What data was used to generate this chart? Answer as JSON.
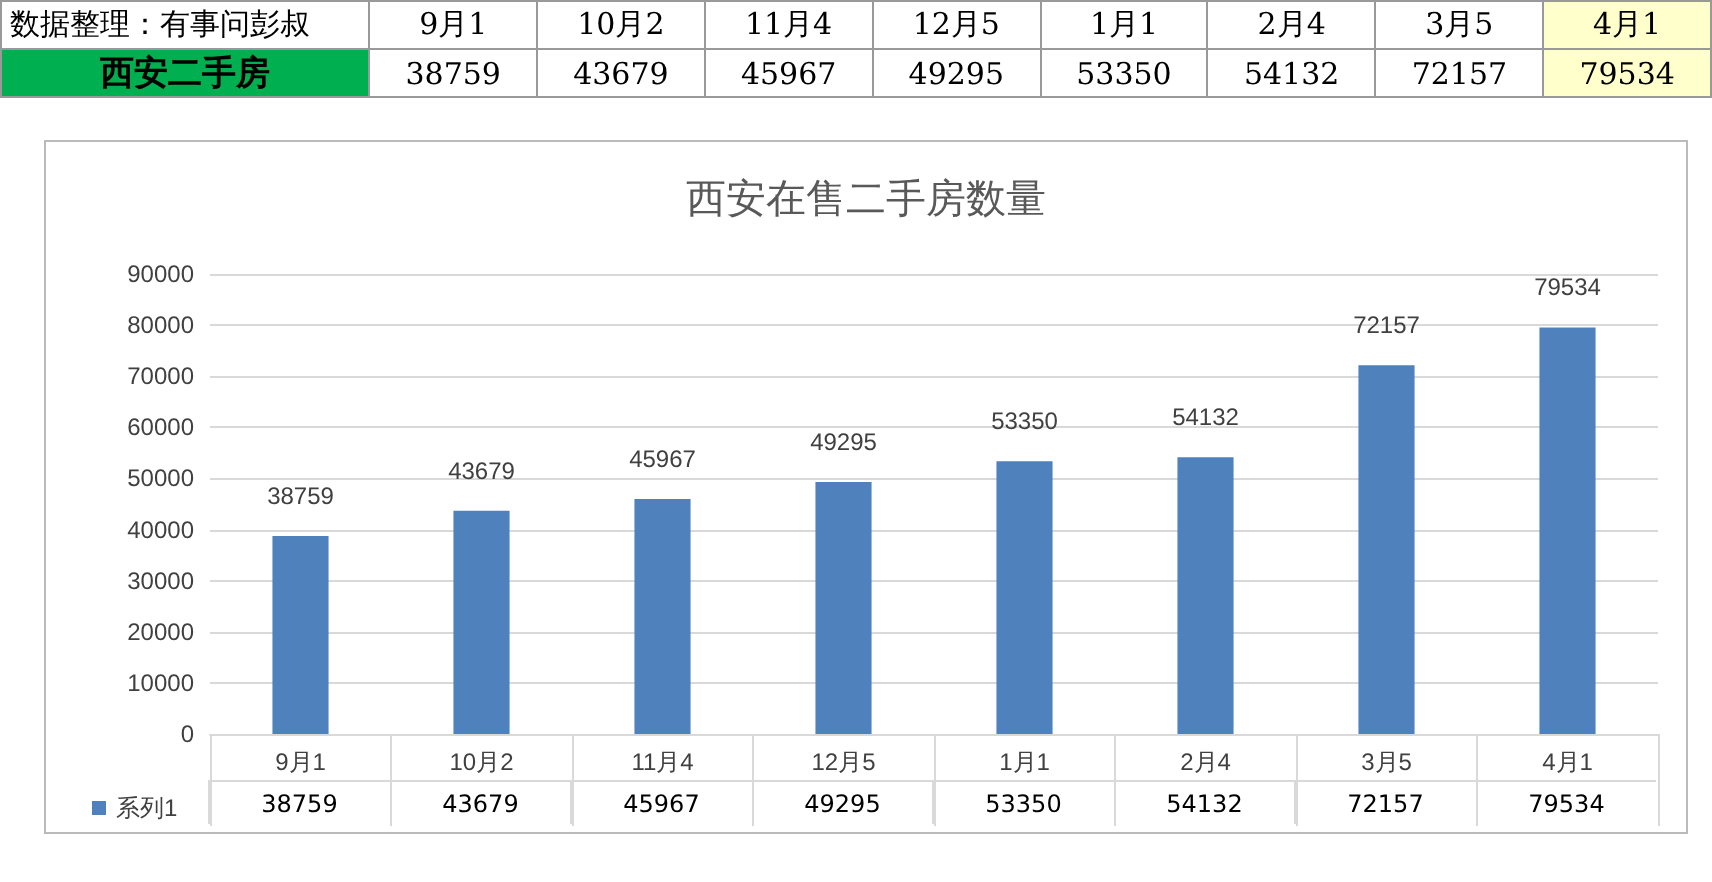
{
  "chart_data": [
    {
      "type": "other",
      "annotations": [
        "数据整理：有事问彭叔"
      ],
      "data_labels": true,
      "categories": [
        "9月1",
        "10月2",
        "11月4",
        "12月5",
        "1月1",
        "2月4",
        "3月5",
        "4月1"
      ],
      "series": [
        {
          "name": "西安二手房",
          "values": [
            38759,
            43679,
            45967,
            49295,
            53350,
            54132,
            72157,
            79534
          ]
        }
      ]
    },
    {
      "type": "bar",
      "title": "西安在售二手房数量",
      "categories": [
        "9月1",
        "10月2",
        "11月4",
        "12月5",
        "1月1",
        "2月4",
        "3月5",
        "4月1"
      ],
      "series": [
        {
          "name": "系列1",
          "color": "#4f81bd",
          "values": [
            38759,
            43679,
            45967,
            49295,
            53350,
            54132,
            72157,
            79534
          ],
          "value_labels": [
            "38759",
            "43679",
            "45967",
            "49295",
            "53350",
            "54132",
            "72157",
            "79534"
          ]
        }
      ],
      "ylim": [
        0,
        90000
      ],
      "yticks": [
        0,
        10000,
        20000,
        30000,
        40000,
        50000,
        60000,
        70000,
        80000,
        90000
      ],
      "grid": "y",
      "legend": "bottom"
    },
    {
      "type": "other",
      "data_labels": true,
      "values": [
        38759,
        43679,
        45967,
        49295,
        53350,
        54132,
        72157,
        79534
      ]
    }
  ]
}
